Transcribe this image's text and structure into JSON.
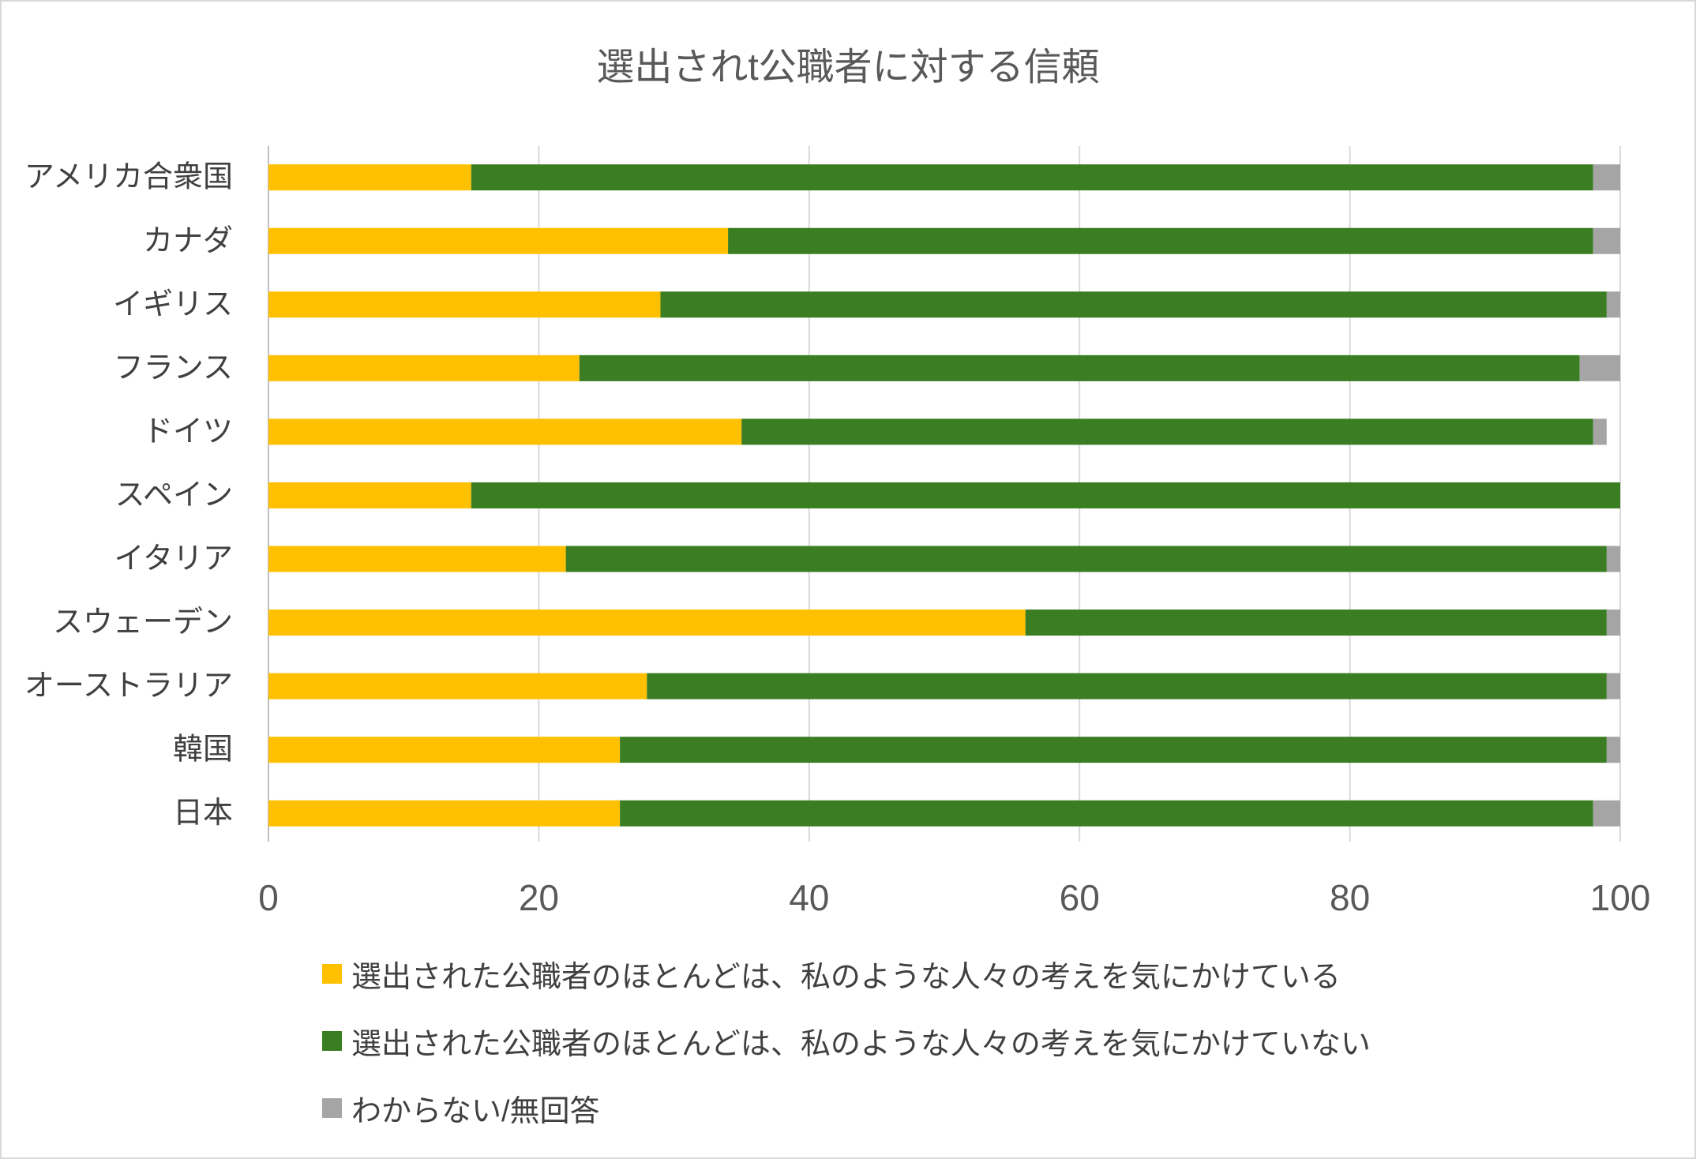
{
  "chart_data": {
    "type": "bar",
    "orientation": "horizontal",
    "stacked": true,
    "title": "選出されt公職者に対する信頼",
    "xlabel": "",
    "ylabel": "",
    "categories": [
      "アメリカ合衆国",
      "カナダ",
      "イギリス",
      "フランス",
      "ドイツ",
      "スペイン",
      "イタリア",
      "スウェーデン",
      "オーストラリア",
      "韓国",
      "日本"
    ],
    "series": [
      {
        "name": "選出された公職者のほとんどは、私のような人々の考えを気にかけている",
        "color": "#FFC000",
        "values": [
          15,
          34,
          29,
          23,
          35,
          15,
          22,
          56,
          28,
          26,
          26
        ]
      },
      {
        "name": "選出された公職者のほとんどは、私のような人々の考えを気にかけていない",
        "color": "#3B7D23",
        "values": [
          83,
          64,
          70,
          74,
          63,
          85,
          77,
          43,
          71,
          73,
          72
        ]
      },
      {
        "name": "わからない/無回答",
        "color": "#A5A5A5",
        "values": [
          2,
          2,
          1,
          3,
          1,
          0,
          1,
          1,
          1,
          1,
          2
        ]
      }
    ],
    "xlim": [
      0,
      100
    ],
    "xticks": [
      0,
      20,
      40,
      60,
      80,
      100
    ],
    "grid": "vertical gridlines on",
    "legend": "bottom"
  }
}
